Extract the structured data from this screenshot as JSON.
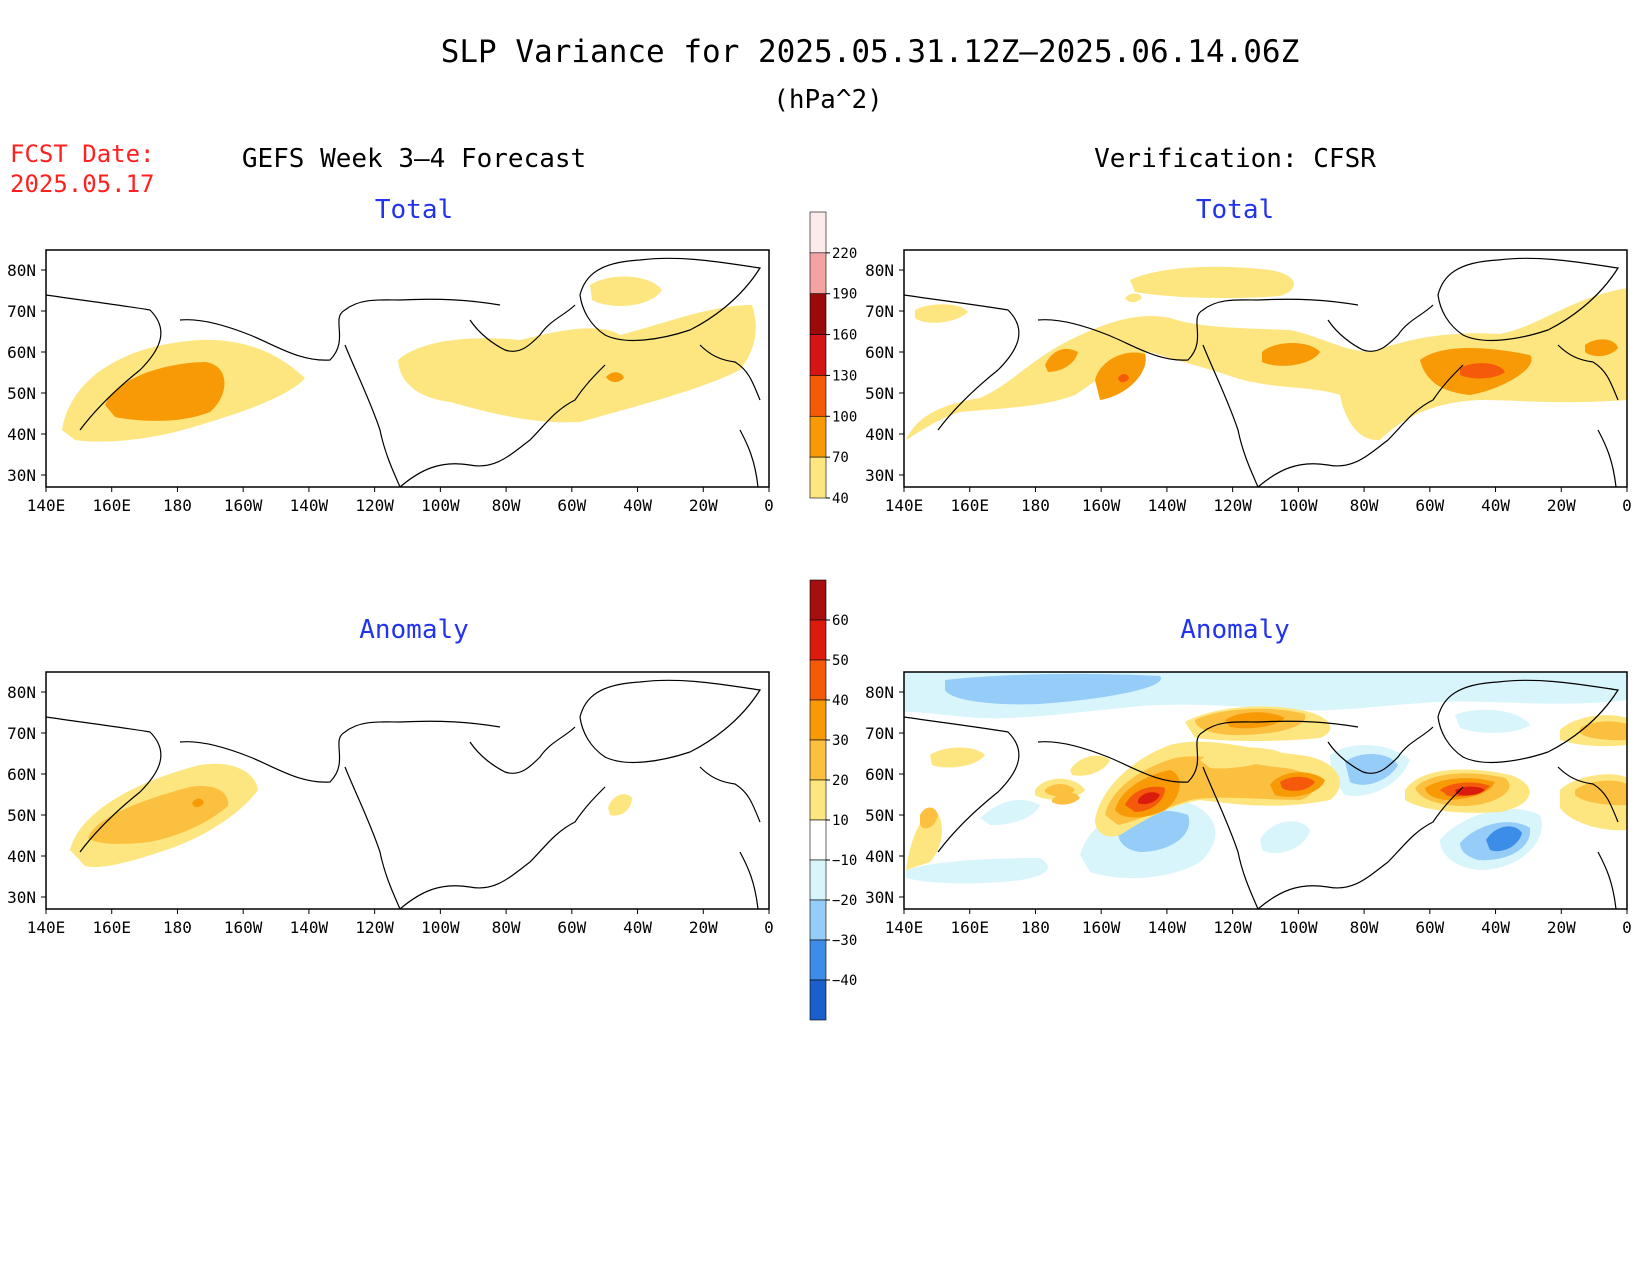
{
  "header": {
    "title": "SLP Variance for 2025.05.31.12Z–2025.06.14.06Z",
    "units": "(hPa^2)",
    "fcst_label": "FCST Date:",
    "fcst_date": "2025.05.17"
  },
  "columns": {
    "left": "GEFS Week 3–4 Forecast",
    "right": "Verification: CFSR"
  },
  "panels": {
    "top_left": "Total",
    "top_right": "Total",
    "bottom_left": "Anomaly",
    "bottom_right": "Anomaly"
  },
  "axes": {
    "lat_labels": [
      "80N",
      "70N",
      "60N",
      "50N",
      "40N",
      "30N"
    ],
    "lon_labels": [
      "140E",
      "160E",
      "180",
      "160W",
      "140W",
      "120W",
      "100W",
      "80W",
      "60W",
      "40W",
      "20W",
      "0"
    ]
  },
  "colorbars": {
    "total": {
      "labels": [
        "220",
        "190",
        "160",
        "130",
        "100",
        "70",
        "40"
      ],
      "colors": [
        "#fdeaea",
        "#f4a3a3",
        "#9a0a0a",
        "#d41515",
        "#f55a0a",
        "#f79a05",
        "#fde680"
      ]
    },
    "anomaly": {
      "labels": [
        "60",
        "50",
        "40",
        "30",
        "20",
        "10",
        "−10",
        "−20",
        "−30",
        "−40"
      ],
      "colors": [
        "#a50f0f",
        "#db1c0c",
        "#f55a0a",
        "#f79a05",
        "#fcc040",
        "#fde680",
        "#ffffff",
        "#d8f5fc",
        "#96cdf8",
        "#3c8de8",
        "#1a5fcc"
      ]
    }
  }
}
